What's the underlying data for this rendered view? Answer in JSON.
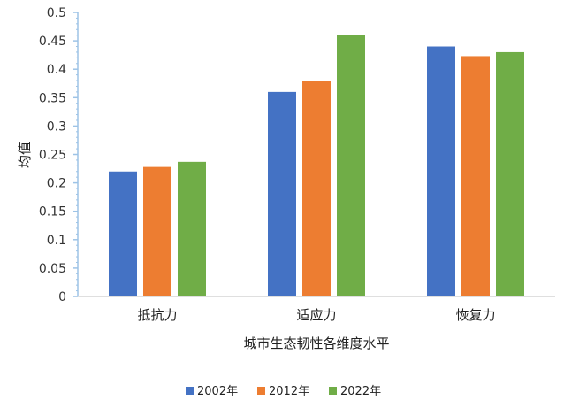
{
  "chart_data": {
    "type": "bar",
    "categories": [
      "抵抗力",
      "适应力",
      "恢复力"
    ],
    "series": [
      {
        "name": "2002年",
        "values": [
          0.22,
          0.36,
          0.44
        ],
        "color": "#4472C4"
      },
      {
        "name": "2012年",
        "values": [
          0.228,
          0.38,
          0.423
        ],
        "color": "#ED7D31"
      },
      {
        "name": "2022年",
        "values": [
          0.237,
          0.461,
          0.43
        ],
        "color": "#70AD47"
      }
    ],
    "title": "",
    "xlabel": "城市生态韧性各维度水平",
    "ylabel": "均值",
    "ylim": [
      0,
      0.5
    ],
    "yticks": [
      "0",
      "0.05",
      "0.1",
      "0.15",
      "0.2",
      "0.25",
      "0.3",
      "0.35",
      "0.4",
      "0.45",
      "0.5"
    ],
    "grid": false,
    "legend_position": "bottom"
  }
}
